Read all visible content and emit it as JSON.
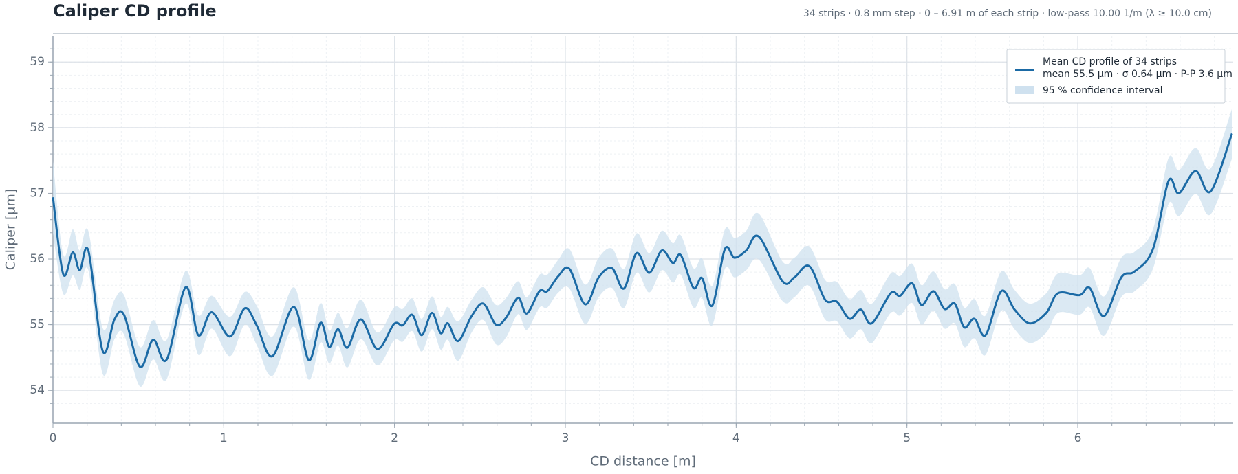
{
  "chart_data": {
    "type": "line",
    "title": "Caliper CD profile",
    "subtitle": "34 strips · 0.8 mm step · 0 – 6.91 m of each strip · low-pass 10.00 1/m (λ ≥ 10.0 cm)",
    "x_label": "CD distance [m]",
    "y_label": "Caliper [µm]",
    "legend_stats": "mean 55.5 µm · σ 0.64 µm · P-P 3.6 µm",
    "xlim": [
      0,
      6.91
    ],
    "ylim": [
      53.5,
      59.4
    ],
    "xticks": [
      0,
      1,
      2,
      3,
      4,
      5,
      6
    ],
    "yticks": [
      54,
      55,
      56,
      57,
      58,
      59
    ],
    "grid": true,
    "minor_grid": true,
    "legend": "upper right",
    "x": [
      0,
      0.06,
      0.116,
      0.157,
      0.208,
      0.291,
      0.36,
      0.416,
      0.509,
      0.587,
      0.666,
      0.777,
      0.851,
      0.929,
      1.036,
      1.123,
      1.193,
      1.285,
      1.41,
      1.498,
      1.567,
      1.618,
      1.669,
      1.724,
      1.803,
      1.9,
      1.997,
      2.048,
      2.104,
      2.159,
      2.219,
      2.27,
      2.312,
      2.372,
      2.451,
      2.52,
      2.594,
      2.654,
      2.723,
      2.774,
      2.848,
      2.894,
      2.959,
      3.024,
      3.116,
      3.195,
      3.273,
      3.343,
      3.417,
      3.491,
      3.565,
      3.63,
      3.676,
      3.75,
      3.8,
      3.86,
      3.934,
      3.99,
      4.059,
      4.133,
      4.272,
      4.341,
      4.429,
      4.521,
      4.59,
      4.664,
      4.73,
      4.794,
      4.905,
      4.96,
      5.03,
      5.085,
      5.155,
      5.22,
      5.28,
      5.335,
      5.395,
      5.46,
      5.552,
      5.63,
      5.719,
      5.816,
      5.885,
      6.01,
      6.07,
      6.153,
      6.255,
      6.333,
      6.44,
      6.532,
      6.592,
      6.69,
      6.778,
      6.903
    ],
    "series": [
      {
        "name": "Mean CD profile of 34 strips",
        "color": "#1b6aa5",
        "values": [
          56.94,
          55.77,
          56.1,
          55.83,
          56.12,
          54.6,
          55.08,
          55.15,
          54.36,
          54.77,
          54.47,
          55.57,
          54.84,
          55.19,
          54.82,
          55.25,
          54.99,
          54.52,
          55.27,
          54.46,
          55.03,
          54.66,
          54.93,
          54.65,
          55.08,
          54.63,
          55.01,
          54.99,
          55.15,
          54.84,
          55.18,
          54.87,
          55.02,
          54.75,
          55.13,
          55.32,
          55.0,
          55.11,
          55.41,
          55.17,
          55.51,
          55.51,
          55.74,
          55.85,
          55.31,
          55.72,
          55.86,
          55.55,
          56.09,
          55.79,
          56.13,
          55.94,
          56.06,
          55.56,
          55.71,
          55.29,
          56.15,
          56.02,
          56.13,
          56.34,
          55.66,
          55.72,
          55.89,
          55.38,
          55.35,
          55.09,
          55.23,
          55.02,
          55.48,
          55.44,
          55.63,
          55.3,
          55.51,
          55.24,
          55.32,
          54.96,
          55.09,
          54.84,
          55.51,
          55.23,
          55.02,
          55.18,
          55.48,
          55.45,
          55.56,
          55.13,
          55.72,
          55.81,
          56.15,
          57.19,
          57.0,
          57.34,
          57.03,
          57.91
        ]
      },
      {
        "name": "95 % confidence interval",
        "color": "#cfe1ef",
        "values": [
          0.55,
          0.3,
          0.35,
          0.3,
          0.3,
          0.35,
          0.3,
          0.3,
          0.3,
          0.3,
          0.3,
          0.25,
          0.3,
          0.25,
          0.3,
          0.25,
          0.3,
          0.3,
          0.3,
          0.3,
          0.3,
          0.25,
          0.25,
          0.3,
          0.3,
          0.25,
          0.25,
          0.25,
          0.25,
          0.25,
          0.25,
          0.25,
          0.25,
          0.3,
          0.25,
          0.25,
          0.3,
          0.3,
          0.25,
          0.25,
          0.25,
          0.25,
          0.25,
          0.3,
          0.3,
          0.3,
          0.3,
          0.3,
          0.3,
          0.3,
          0.3,
          0.3,
          0.3,
          0.3,
          0.3,
          0.3,
          0.3,
          0.3,
          0.3,
          0.35,
          0.3,
          0.3,
          0.3,
          0.3,
          0.3,
          0.3,
          0.3,
          0.3,
          0.3,
          0.3,
          0.3,
          0.3,
          0.3,
          0.3,
          0.3,
          0.3,
          0.3,
          0.3,
          0.3,
          0.3,
          0.3,
          0.3,
          0.3,
          0.3,
          0.3,
          0.3,
          0.3,
          0.3,
          0.3,
          0.35,
          0.35,
          0.35,
          0.35,
          0.38
        ]
      }
    ]
  }
}
